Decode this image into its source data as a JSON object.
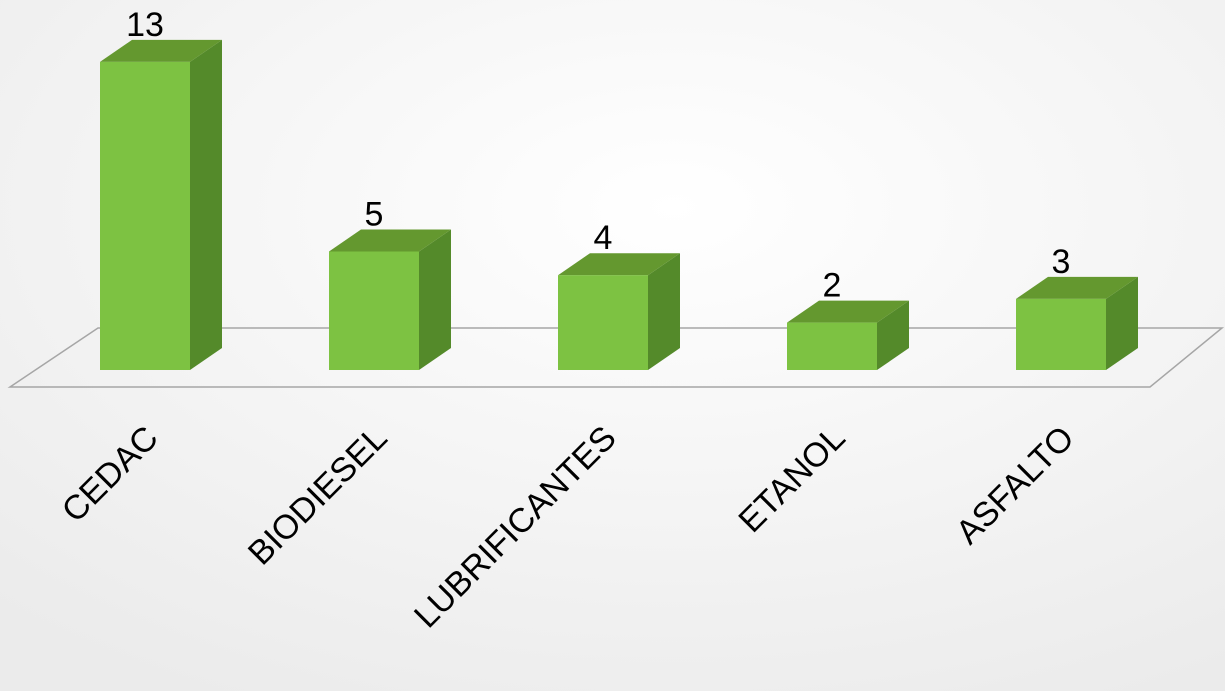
{
  "chart_data": {
    "type": "bar3d",
    "categories": [
      "CEDAC",
      "BIODIESEL",
      "LUBRIFICANTES",
      "ETANOL",
      "ASFALTO"
    ],
    "values": [
      13,
      5,
      4,
      2,
      3
    ],
    "color": "#7dc242"
  }
}
